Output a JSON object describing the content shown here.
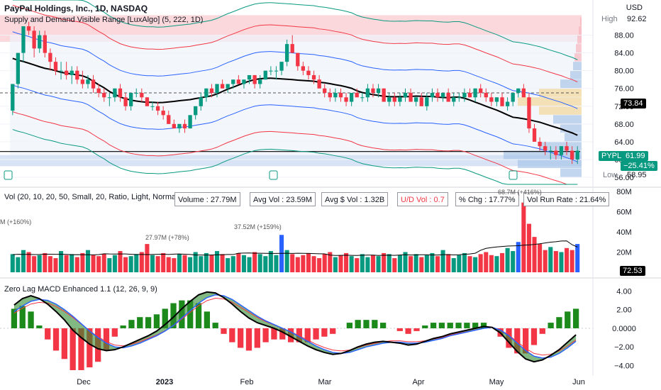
{
  "header": {
    "title": "PayPal Holdings, Inc., 1D, NASDAQ",
    "indicator": "Supply and Demand Visible Range [LuxAlgo] (5, 222, 1D)"
  },
  "price_axis": {
    "currency": "USD",
    "high_label": "High",
    "high_value": "92.62",
    "low_label": "Low",
    "low_value": "58.95",
    "poc_value": "73.84",
    "ticker": "PYPL",
    "last": "61.99",
    "change": "−25.41%",
    "ticks": [
      "88.00",
      "84.00",
      "80.00",
      "76.00",
      "72.00",
      "68.00",
      "64.00",
      "60.00",
      "56.00"
    ]
  },
  "volume_panel": {
    "label": "Vol (20, 10, 20, 50, Small, 20, Ratio, Light, Normal, Top Right)",
    "stats": [
      "Volume : 27.79M",
      "Avg Vol : 23.59M",
      "Avg $ Vol : 1.32B",
      "U/D Vol : 0.7",
      "% Chg : 17.77%",
      "Vol Run Rate : 21.64%"
    ],
    "annotations": [
      "M (+160%)",
      "27.97M (+78%)",
      "37.52M (+159%)",
      "68.7M (+416%)"
    ],
    "ticks": [
      "80M",
      "60M",
      "40M",
      "20M"
    ],
    "last": "72.53"
  },
  "macd_panel": {
    "label": "Zero Lag MACD Enhanced 1.1 (12, 26, 9, 9)",
    "ticks": [
      "4.00",
      "2.00",
      "0.0000",
      "−2.00",
      "−4.00"
    ]
  },
  "time_axis": [
    "Dec",
    "2023",
    "Feb",
    "Mar",
    "Apr",
    "May",
    "Jun"
  ],
  "chart_data": {
    "type": "candlestick",
    "ohlc": [
      [
        71,
        77,
        70,
        77
      ],
      [
        77,
        84,
        76,
        84
      ],
      [
        84,
        90,
        82,
        90
      ],
      [
        90,
        91,
        88,
        89
      ],
      [
        89,
        90,
        83,
        85
      ],
      [
        85,
        89,
        84,
        88
      ],
      [
        88,
        89,
        83,
        84
      ],
      [
        84,
        85,
        80,
        82
      ],
      [
        82,
        83,
        79,
        80
      ],
      [
        80,
        82,
        78,
        80
      ],
      [
        80,
        82,
        78,
        79
      ],
      [
        79,
        81,
        77,
        80
      ],
      [
        80,
        81,
        77,
        78
      ],
      [
        78,
        80,
        76,
        77
      ],
      [
        77,
        79,
        76,
        78
      ],
      [
        78,
        79,
        75,
        76
      ],
      [
        76,
        77,
        74,
        75
      ],
      [
        75,
        76,
        73,
        74
      ],
      [
        74,
        75,
        72,
        74
      ],
      [
        74,
        76,
        73,
        76
      ],
      [
        76,
        77,
        73,
        74
      ],
      [
        74,
        75,
        71,
        72
      ],
      [
        72,
        75,
        71,
        75
      ],
      [
        75,
        76,
        74,
        75
      ],
      [
        75,
        76,
        73,
        74
      ],
      [
        74,
        74,
        72,
        72
      ],
      [
        72,
        73,
        71,
        72
      ],
      [
        72,
        73,
        70,
        71
      ],
      [
        71,
        72,
        69,
        70
      ],
      [
        70,
        71,
        68,
        68
      ],
      [
        68,
        69,
        67,
        67
      ],
      [
        67,
        68,
        66,
        68
      ],
      [
        68,
        69,
        66,
        67
      ],
      [
        67,
        70,
        67,
        70
      ],
      [
        70,
        72,
        69,
        72
      ],
      [
        72,
        75,
        71,
        74
      ],
      [
        74,
        76,
        73,
        76
      ],
      [
        76,
        77,
        74,
        75
      ],
      [
        75,
        77,
        74,
        77
      ],
      [
        77,
        78,
        76,
        76
      ],
      [
        76,
        77,
        75,
        77
      ],
      [
        77,
        78,
        76,
        78
      ],
      [
        78,
        79,
        77,
        77
      ],
      [
        77,
        78,
        76,
        78
      ],
      [
        78,
        79,
        77,
        79
      ],
      [
        79,
        79,
        76,
        77
      ],
      [
        77,
        79,
        76,
        78
      ],
      [
        78,
        80,
        78,
        80
      ],
      [
        80,
        81,
        79,
        80
      ],
      [
        80,
        81,
        78,
        80
      ],
      [
        80,
        82,
        79,
        82
      ],
      [
        82,
        87,
        81,
        86
      ],
      [
        86,
        88,
        84,
        84
      ],
      [
        84,
        84,
        80,
        81
      ],
      [
        81,
        82,
        79,
        80
      ],
      [
        80,
        81,
        78,
        79
      ],
      [
        79,
        80,
        77,
        78
      ],
      [
        78,
        79,
        76,
        76
      ],
      [
        76,
        77,
        74,
        75
      ],
      [
        75,
        76,
        73,
        74
      ],
      [
        74,
        76,
        73,
        75
      ],
      [
        75,
        76,
        73,
        74
      ],
      [
        74,
        75,
        72,
        73
      ],
      [
        73,
        75,
        72,
        75
      ],
      [
        75,
        76,
        74,
        74
      ],
      [
        74,
        75,
        73,
        74
      ],
      [
        74,
        77,
        73,
        76
      ],
      [
        76,
        77,
        74,
        75
      ],
      [
        75,
        77,
        74,
        76
      ],
      [
        76,
        76,
        73,
        73
      ],
      [
        73,
        75,
        72,
        74
      ],
      [
        74,
        75,
        72,
        73
      ],
      [
        73,
        75,
        72,
        74
      ],
      [
        74,
        76,
        73,
        75
      ],
      [
        75,
        76,
        73,
        73
      ],
      [
        73,
        74,
        72,
        74
      ],
      [
        74,
        75,
        72,
        72
      ],
      [
        72,
        75,
        71,
        74
      ],
      [
        74,
        76,
        73,
        75
      ],
      [
        75,
        76,
        73,
        74
      ],
      [
        74,
        75,
        73,
        75
      ],
      [
        75,
        76,
        73,
        73
      ],
      [
        73,
        75,
        72,
        74
      ],
      [
        74,
        75,
        73,
        74
      ],
      [
        74,
        76,
        73,
        75
      ],
      [
        75,
        76,
        74,
        74
      ],
      [
        74,
        76,
        73,
        76
      ],
      [
        76,
        77,
        74,
        75
      ],
      [
        75,
        76,
        73,
        74
      ],
      [
        74,
        75,
        72,
        73
      ],
      [
        73,
        74,
        72,
        74
      ],
      [
        74,
        75,
        72,
        72
      ],
      [
        72,
        74,
        71,
        73
      ],
      [
        73,
        75,
        72,
        75
      ],
      [
        75,
        76,
        74,
        76
      ],
      [
        76,
        77,
        74,
        74
      ],
      [
        74,
        75,
        66,
        67
      ],
      [
        67,
        68,
        64,
        64
      ],
      [
        64,
        65,
        62,
        63
      ],
      [
        63,
        64,
        61,
        62
      ],
      [
        62,
        63,
        60,
        62
      ],
      [
        62,
        63,
        60,
        61
      ],
      [
        61,
        63,
        60,
        63
      ],
      [
        63,
        64,
        61,
        62
      ],
      [
        62,
        63,
        59,
        60
      ],
      [
        60,
        63,
        59,
        62
      ]
    ],
    "volume": [
      18,
      15,
      22,
      20,
      16,
      17,
      19,
      16,
      14,
      21,
      17,
      18,
      15,
      19,
      22,
      17,
      16,
      18,
      14,
      17,
      21,
      15,
      16,
      18,
      20,
      28,
      17,
      16,
      19,
      15,
      14,
      18,
      17,
      15,
      20,
      16,
      19,
      17,
      21,
      18,
      14,
      16,
      19,
      17,
      15,
      20,
      18,
      16,
      21,
      17,
      37,
      22,
      18,
      15,
      17,
      19,
      16,
      14,
      18,
      20,
      15,
      17,
      19,
      16,
      14,
      18,
      15,
      17,
      16,
      19,
      18,
      14,
      17,
      20,
      16,
      18,
      15,
      17,
      19,
      16,
      22,
      18,
      14,
      17,
      19,
      16,
      15,
      18,
      20,
      17,
      16,
      19,
      24,
      21,
      30,
      69,
      48,
      35,
      28,
      22,
      25,
      21,
      20,
      24,
      22,
      28
    ],
    "macd": [
      2.5,
      3.2,
      3.5,
      3.2,
      2.6,
      1.8,
      0.9,
      -0.2,
      -1,
      -1.7,
      -2.2,
      -2.4,
      -2.3,
      -2,
      -1.6,
      -1.2,
      -0.8,
      -0.3,
      0.4,
      1.2,
      2.1,
      2.9,
      3.6,
      3.9,
      3.8,
      3.3,
      2.6,
      1.8,
      1.1,
      0.6,
      0.3,
      0,
      -0.4,
      -0.9,
      -1.4,
      -1.9,
      -2.3,
      -2.6,
      -2.8,
      -2.7,
      -2.4,
      -2,
      -1.7,
      -1.5,
      -1.4,
      -1.5,
      -1.6,
      -1.8,
      -1.7,
      -1.4,
      -1.1,
      -0.9,
      -0.6,
      -0.4,
      -0.2,
      0,
      0.2,
      0.1,
      -0.5,
      -1.5,
      -2.5,
      -3.3,
      -3.6,
      -3.4,
      -2.9,
      -2.3,
      -1.5,
      -0.7
    ],
    "signal": [
      1.8,
      2.4,
      2.9,
      3.1,
      3,
      2.6,
      2,
      1.3,
      0.5,
      -0.3,
      -1,
      -1.6,
      -2,
      -2.1,
      -1.9,
      -1.6,
      -1.2,
      -0.8,
      -0.3,
      0.3,
      1.1,
      1.9,
      2.7,
      3.3,
      3.6,
      3.5,
      3.1,
      2.5,
      1.9,
      1.3,
      0.8,
      0.4,
      0,
      -0.4,
      -0.9,
      -1.4,
      -1.9,
      -2.3,
      -2.6,
      -2.7,
      -2.6,
      -2.3,
      -2,
      -1.8,
      -1.6,
      -1.5,
      -1.5,
      -1.6,
      -1.6,
      -1.5,
      -1.3,
      -1.1,
      -0.8,
      -0.6,
      -0.4,
      -0.2,
      0,
      0.1,
      -0.2,
      -0.8,
      -1.6,
      -2.4,
      -3,
      -3.2,
      -3.1,
      -2.7,
      -2.1,
      -1.4
    ],
    "ylim_price": [
      56,
      94
    ],
    "ylim_volume": [
      0,
      80
    ],
    "ylim_macd": [
      -4.5,
      4.8
    ],
    "colors": {
      "up": "#089981",
      "down": "#f23645",
      "line": "#000000",
      "supply": "#f7a8b0",
      "demand": "#a9c4e8",
      "vol_high": "#2962ff"
    }
  }
}
